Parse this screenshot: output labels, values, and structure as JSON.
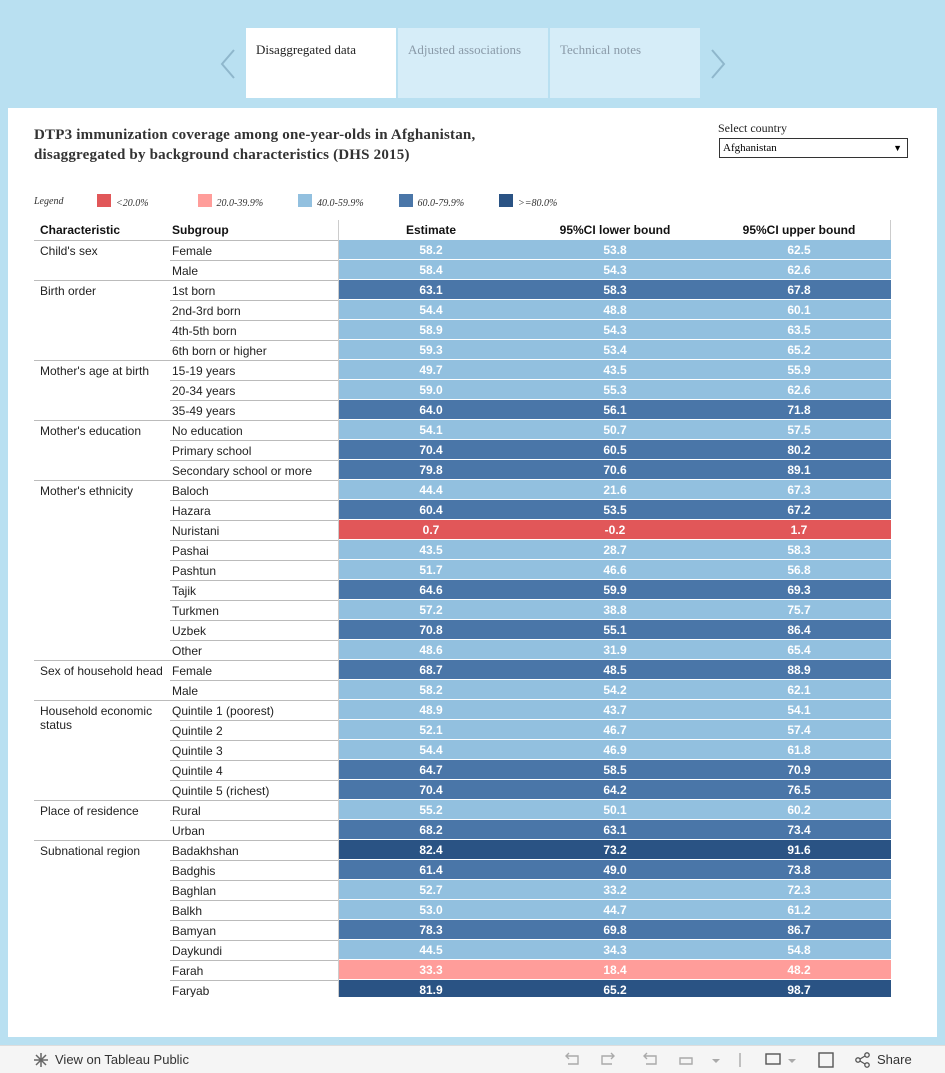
{
  "tabs": [
    "Disaggregated data",
    "Adjusted associations",
    "Technical notes"
  ],
  "title_lines": [
    "DTP3 immunization coverage among one-year-olds in Afghanistan,",
    "disaggregated by background characteristics (DHS 2015)"
  ],
  "country_select": {
    "label": "Select country",
    "value": "Afghanistan"
  },
  "legend": {
    "title": "Legend",
    "breaks": [
      20,
      40,
      60,
      80
    ],
    "items": [
      {
        "label": "<20.0%",
        "color": "#e15759"
      },
      {
        "label": "20.0-39.9%",
        "color": "#ff9d9a"
      },
      {
        "label": "40.0-59.9%",
        "color": "#92c0df"
      },
      {
        "label": "60.0-79.9%",
        "color": "#4a76a8"
      },
      {
        "label": ">=80.0%",
        "color": "#2a5384"
      }
    ]
  },
  "table": {
    "columns": [
      "Characteristic",
      "Subgroup",
      "Estimate",
      "95%CI lower bound",
      "95%CI upper bound"
    ],
    "groups": [
      {
        "characteristic": "Child's sex",
        "rows": [
          {
            "subgroup": "Female",
            "cells": [
              "58.2",
              "53.8",
              "62.5"
            ]
          },
          {
            "subgroup": "Male",
            "cells": [
              "58.4",
              "54.3",
              "62.6"
            ]
          }
        ]
      },
      {
        "characteristic": "Birth order",
        "rows": [
          {
            "subgroup": "1st born",
            "cells": [
              "63.1",
              "58.3",
              "67.8"
            ]
          },
          {
            "subgroup": "2nd-3rd born",
            "cells": [
              "54.4",
              "48.8",
              "60.1"
            ]
          },
          {
            "subgroup": "4th-5th born",
            "cells": [
              "58.9",
              "54.3",
              "63.5"
            ]
          },
          {
            "subgroup": "6th born or higher",
            "cells": [
              "59.3",
              "53.4",
              "65.2"
            ]
          }
        ]
      },
      {
        "characteristic": "Mother's age at birth",
        "rows": [
          {
            "subgroup": "15-19 years",
            "cells": [
              "49.7",
              "43.5",
              "55.9"
            ]
          },
          {
            "subgroup": "20-34 years",
            "cells": [
              "59.0",
              "55.3",
              "62.6"
            ]
          },
          {
            "subgroup": "35-49 years",
            "cells": [
              "64.0",
              "56.1",
              "71.8"
            ]
          }
        ]
      },
      {
        "characteristic": "Mother's education",
        "rows": [
          {
            "subgroup": "No education",
            "cells": [
              "54.1",
              "50.7",
              "57.5"
            ]
          },
          {
            "subgroup": "Primary school",
            "cells": [
              "70.4",
              "60.5",
              "80.2"
            ]
          },
          {
            "subgroup": "Secondary school or more",
            "cells": [
              "79.8",
              "70.6",
              "89.1"
            ]
          }
        ]
      },
      {
        "characteristic": "Mother's ethnicity",
        "rows": [
          {
            "subgroup": "Baloch",
            "cells": [
              "44.4",
              "21.6",
              "67.3"
            ]
          },
          {
            "subgroup": "Hazara",
            "cells": [
              "60.4",
              "53.5",
              "67.2"
            ]
          },
          {
            "subgroup": "Nuristani",
            "cells": [
              "0.7",
              "-0.2",
              "1.7"
            ]
          },
          {
            "subgroup": "Pashai",
            "cells": [
              "43.5",
              "28.7",
              "58.3"
            ]
          },
          {
            "subgroup": "Pashtun",
            "cells": [
              "51.7",
              "46.6",
              "56.8"
            ]
          },
          {
            "subgroup": "Tajik",
            "cells": [
              "64.6",
              "59.9",
              "69.3"
            ]
          },
          {
            "subgroup": "Turkmen",
            "cells": [
              "57.2",
              "38.8",
              "75.7"
            ]
          },
          {
            "subgroup": "Uzbek",
            "cells": [
              "70.8",
              "55.1",
              "86.4"
            ]
          },
          {
            "subgroup": "Other",
            "cells": [
              "48.6",
              "31.9",
              "65.4"
            ]
          }
        ]
      },
      {
        "characteristic": "Sex of household head",
        "rows": [
          {
            "subgroup": "Female",
            "cells": [
              "68.7",
              "48.5",
              "88.9"
            ]
          },
          {
            "subgroup": "Male",
            "cells": [
              "58.2",
              "54.2",
              "62.1"
            ]
          }
        ]
      },
      {
        "characteristic": "Household economic status",
        "rows": [
          {
            "subgroup": "Quintile 1 (poorest)",
            "cells": [
              "48.9",
              "43.7",
              "54.1"
            ]
          },
          {
            "subgroup": "Quintile 2",
            "cells": [
              "52.1",
              "46.7",
              "57.4"
            ]
          },
          {
            "subgroup": "Quintile 3",
            "cells": [
              "54.4",
              "46.9",
              "61.8"
            ]
          },
          {
            "subgroup": "Quintile 4",
            "cells": [
              "64.7",
              "58.5",
              "70.9"
            ]
          },
          {
            "subgroup": "Quintile 5 (richest)",
            "cells": [
              "70.4",
              "64.2",
              "76.5"
            ]
          }
        ]
      },
      {
        "characteristic": "Place of residence",
        "rows": [
          {
            "subgroup": "Rural",
            "cells": [
              "55.2",
              "50.1",
              "60.2"
            ]
          },
          {
            "subgroup": "Urban",
            "cells": [
              "68.2",
              "63.1",
              "73.4"
            ]
          }
        ]
      },
      {
        "characteristic": "Subnational region",
        "rows": [
          {
            "subgroup": "Badakhshan",
            "cells": [
              "82.4",
              "73.2",
              "91.6"
            ]
          },
          {
            "subgroup": "Badghis",
            "cells": [
              "61.4",
              "49.0",
              "73.8"
            ]
          },
          {
            "subgroup": "Baghlan",
            "cells": [
              "52.7",
              "33.2",
              "72.3"
            ]
          },
          {
            "subgroup": "Balkh",
            "cells": [
              "53.0",
              "44.7",
              "61.2"
            ]
          },
          {
            "subgroup": "Bamyan",
            "cells": [
              "78.3",
              "69.8",
              "86.7"
            ]
          },
          {
            "subgroup": "Daykundi",
            "cells": [
              "44.5",
              "34.3",
              "54.8"
            ]
          },
          {
            "subgroup": "Farah",
            "cells": [
              "33.3",
              "18.4",
              "48.2"
            ]
          },
          {
            "subgroup": "Faryab",
            "cells": [
              "81.9",
              "65.2",
              "98.7"
            ]
          }
        ]
      }
    ]
  },
  "toolbar": {
    "view_link": "View on Tableau Public",
    "share": "Share"
  }
}
